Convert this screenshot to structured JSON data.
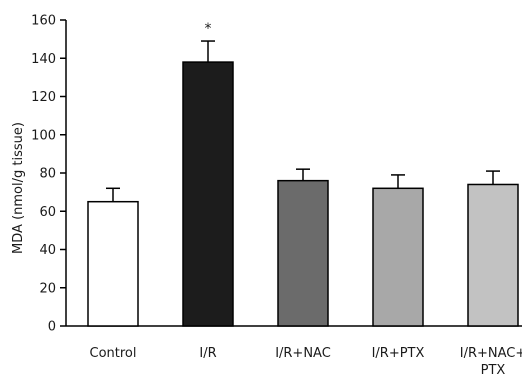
{
  "chart_data": {
    "type": "bar",
    "title": "",
    "xlabel": "",
    "ylabel": "MDA (nmol/g tissue)",
    "ylim": [
      0,
      160
    ],
    "yticks": [
      0,
      20,
      40,
      60,
      80,
      100,
      120,
      140,
      160
    ],
    "grid": false,
    "legend": "none",
    "categories": [
      [
        "Control"
      ],
      [
        "I/R"
      ],
      [
        "I/R+NAC"
      ],
      [
        "I/R+PTX"
      ],
      [
        "I/R+NAC+",
        "PTX"
      ]
    ],
    "values": [
      65,
      138,
      76,
      72,
      74
    ],
    "errors": [
      7,
      11,
      6,
      7,
      7
    ],
    "significance": [
      "",
      "*",
      "",
      "",
      ""
    ],
    "bar_colors": [
      "#ffffff",
      "#1c1c1c",
      "#6b6b6b",
      "#a8a8a8",
      "#c2c2c2"
    ]
  }
}
